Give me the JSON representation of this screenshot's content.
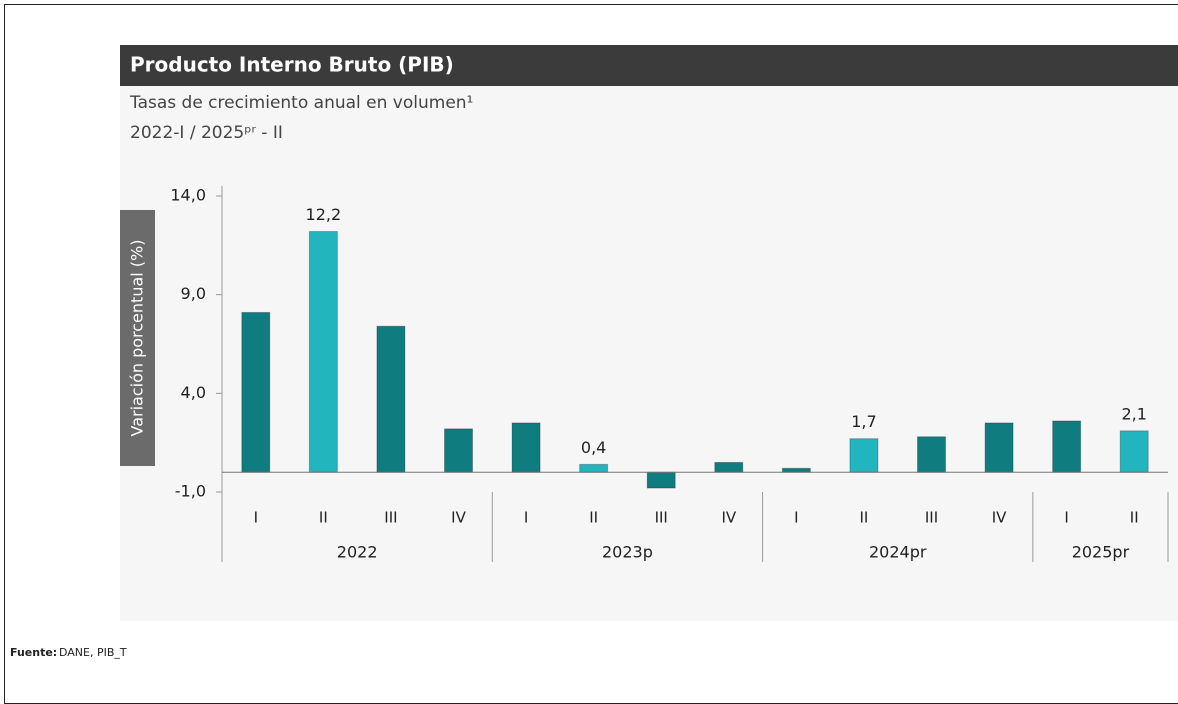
{
  "chart_data": {
    "type": "bar",
    "title": "Producto Interno Bruto (PIB)",
    "subtitle": [
      "Tasas de crecimiento anual en volumen¹",
      "2022-I / 2025ᵖʳ - II"
    ],
    "y_label": "Variación porcentual (%)",
    "groups": [
      {
        "name": "2022",
        "categories": [
          "I",
          "II",
          "III",
          "IV"
        ]
      },
      {
        "name": "2023p",
        "categories": [
          "I",
          "II",
          "III",
          "IV"
        ]
      },
      {
        "name": "2024pr",
        "categories": [
          "I",
          "II",
          "III",
          "IV"
        ]
      },
      {
        "name": "2025pr",
        "categories": [
          "I",
          "II"
        ]
      }
    ],
    "values": [
      8.1,
      12.2,
      7.4,
      2.2,
      2.5,
      0.4,
      -0.8,
      0.5,
      0.2,
      1.7,
      1.8,
      2.5,
      2.6,
      2.1
    ],
    "value_labels": [
      null,
      "12,2",
      null,
      null,
      null,
      "0,4",
      null,
      null,
      null,
      "1,7",
      null,
      null,
      null,
      "2,1"
    ],
    "colors": [
      "#0f7d80",
      "#22b5be",
      "#0f7d80",
      "#0f7d80",
      "#0f7d80",
      "#22b5be",
      "#0f7d80",
      "#0f7d80",
      "#0f7d80",
      "#22b5be",
      "#0f7d80",
      "#0f7d80",
      "#0f7d80",
      "#22b5be"
    ],
    "ylim": [
      -1,
      14
    ],
    "yticks": [
      {
        "value": 14,
        "label": "14,0"
      },
      {
        "value": 9,
        "label": "9,0"
      },
      {
        "value": 4,
        "label": "4,0"
      },
      {
        "value": -1,
        "label": "-1,0"
      }
    ],
    "source": {
      "label": "Fuente:",
      "text": "DANE, PIB_T"
    }
  }
}
